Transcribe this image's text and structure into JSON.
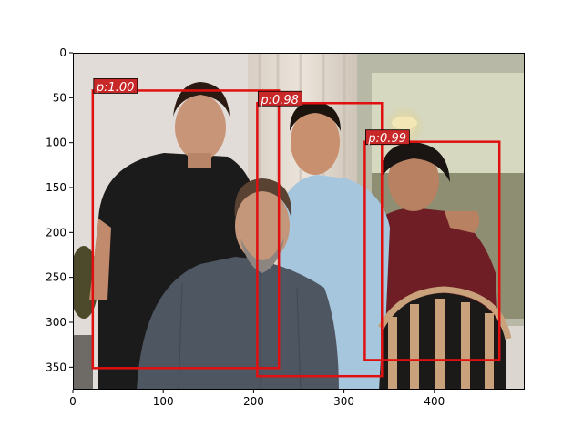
{
  "chart_data": {
    "type": "scatter",
    "image_extent": {
      "x": [
        0,
        500
      ],
      "y": [
        375,
        0
      ]
    },
    "xlim": [
      0,
      500
    ],
    "ylim": [
      375,
      0
    ],
    "x_ticks": [
      0,
      100,
      200,
      300,
      400
    ],
    "y_ticks": [
      0,
      50,
      100,
      150,
      200,
      250,
      300,
      350
    ],
    "grid": false,
    "box_color": "#e01010",
    "label_bg": "#c82828",
    "label_text_color": "#ffffff",
    "detections": [
      {
        "label": "p:1.00",
        "x1": 22,
        "y1": 42,
        "x2": 228,
        "y2": 351
      },
      {
        "label": "p:0.98",
        "x1": 204,
        "y1": 56,
        "x2": 342,
        "y2": 360
      },
      {
        "label": "p:0.99",
        "x1": 323,
        "y1": 99,
        "x2": 472,
        "y2": 342
      }
    ]
  }
}
